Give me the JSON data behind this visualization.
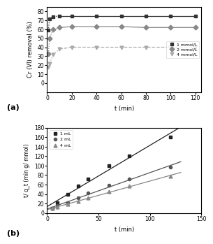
{
  "plot_a": {
    "t": [
      1,
      2,
      5,
      10,
      20,
      40,
      60,
      80,
      100,
      120
    ],
    "series": [
      {
        "label": "1 mmol/L",
        "y": [
          59,
          72,
          74,
          75,
          75,
          75,
          75,
          75,
          75,
          75
        ],
        "marker": "s",
        "color": "#333333",
        "linestyle": "-",
        "ms": 3.5
      },
      {
        "label": "2 mmol/L",
        "y": [
          33,
          50,
          60,
          62,
          63,
          63,
          63,
          62,
          62,
          62
        ],
        "marker": "D",
        "color": "#888888",
        "linestyle": "-",
        "ms": 3.5
      },
      {
        "label": "4 mmol/L",
        "y": [
          18,
          22,
          32,
          38,
          40,
          40,
          40,
          40,
          40,
          40
        ],
        "marker": "v",
        "color": "#aaaaaa",
        "linestyle": "--",
        "ms": 3.5
      }
    ],
    "xlabel": "t (min)",
    "ylabel": "Cr (VI) removal (%)",
    "xlim": [
      0,
      125
    ],
    "ylim": [
      -10,
      85
    ],
    "xticks": [
      0,
      20,
      40,
      60,
      80,
      100,
      120
    ],
    "yticks": [
      0,
      10,
      20,
      30,
      40,
      50,
      60,
      70,
      80
    ],
    "label": "(a)"
  },
  "plot_b": {
    "t": [
      5,
      10,
      20,
      30,
      40,
      60,
      80,
      120
    ],
    "series": [
      {
        "label": "1 mL",
        "y": [
          10,
          22,
          40,
          57,
          72,
          100,
          120,
          160
        ],
        "marker": "s",
        "color": "#222222",
        "linestyle": "-",
        "ms": 3.5
      },
      {
        "label": "2 mL",
        "y": [
          10,
          15,
          22,
          32,
          42,
          58,
          72,
          97
        ],
        "marker": "o",
        "color": "#555555",
        "linestyle": "-",
        "ms": 3.0
      },
      {
        "label": "4 mL",
        "y": [
          10,
          13,
          18,
          24,
          32,
          45,
          57,
          78
        ],
        "marker": "^",
        "color": "#888888",
        "linestyle": "-",
        "ms": 3.5
      }
    ],
    "xlabel": "t (min)",
    "ylabel": "t/ q_t (min g/ mmol)",
    "xlim": [
      0,
      150
    ],
    "ylim": [
      0,
      180
    ],
    "xticks": [
      0,
      50,
      100,
      150
    ],
    "yticks": [
      0,
      20,
      40,
      60,
      80,
      100,
      120,
      140,
      160,
      180
    ],
    "label": "(b)"
  }
}
